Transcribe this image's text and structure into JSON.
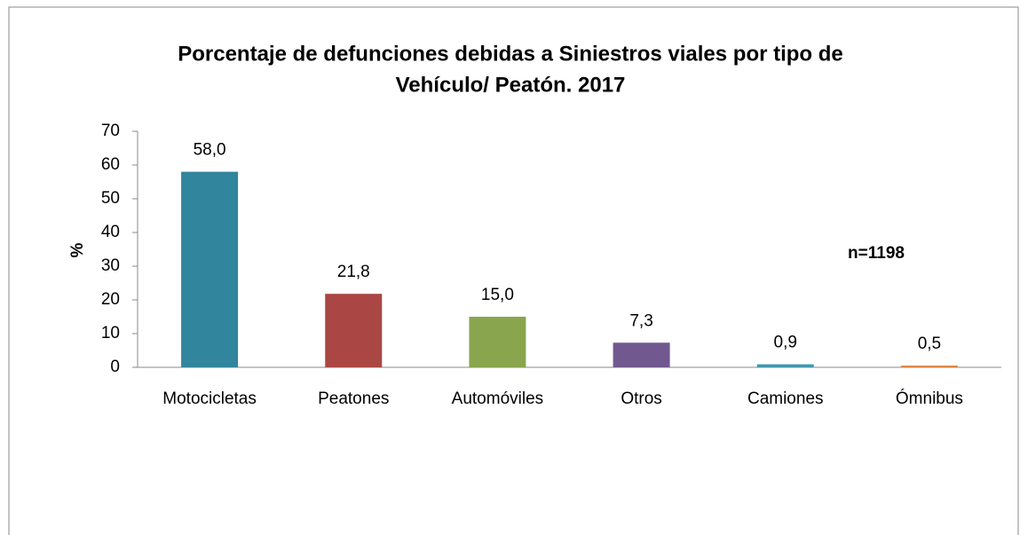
{
  "chart_data": {
    "type": "bar",
    "title": [
      "Porcentaje de defunciones debidas a Siniestros viales por tipo de",
      "Vehículo/ Peatón. 2017"
    ],
    "y_label": "%",
    "annotation": "n=1198",
    "categories": [
      "Motocicletas",
      "Peatones",
      "Automóviles",
      "Otros",
      "Camiones",
      "Ómnibus"
    ],
    "values": [
      58.0,
      21.8,
      15.0,
      7.3,
      0.9,
      0.5
    ],
    "value_labels": [
      "58,0",
      "21,8",
      "15,0",
      "7,3",
      "0,9",
      "0,5"
    ],
    "colors": [
      "#31859c",
      "#aa4643",
      "#89a54e",
      "#71588f",
      "#4198af",
      "#db843d"
    ],
    "ylim": [
      0,
      70
    ],
    "yticks": [
      0,
      10,
      20,
      30,
      40,
      50,
      60,
      70
    ],
    "grid": false
  }
}
